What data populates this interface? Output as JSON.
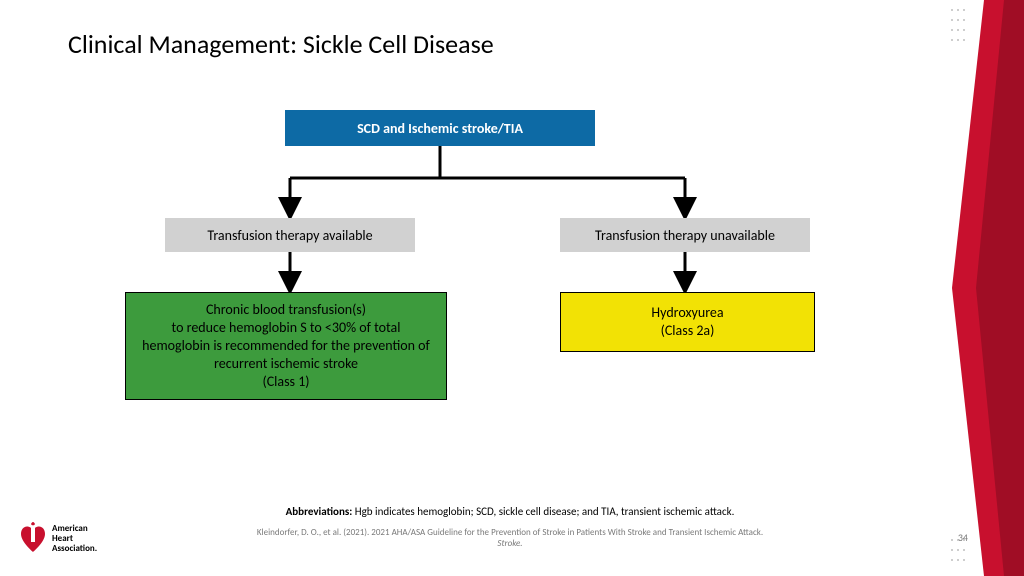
{
  "title": "Clinical Management: Sickle Cell Disease",
  "flowchart": {
    "type": "flowchart",
    "nodes": {
      "root": {
        "label": "SCD and Ischemic stroke/TIA",
        "bg": "#0d6aa5",
        "fg": "#ffffff",
        "font_weight": "700",
        "fontsize": 14
      },
      "left_mid": {
        "label": "Transfusion therapy available",
        "bg": "#d1d1d1",
        "fg": "#000000",
        "fontsize": 14
      },
      "right_mid": {
        "label": "Transfusion therapy unavailable",
        "bg": "#d1d1d1",
        "fg": "#000000",
        "fontsize": 14
      },
      "left_leaf": {
        "label": "Chronic blood transfusion(s)\nto reduce hemoglobin S to <30% of total hemoglobin is recommended for the prevention of recurrent ischemic stroke\n(Class 1)",
        "bg": "#3d9b3d",
        "fg": "#000000",
        "fontsize": 14
      },
      "right_leaf": {
        "label": "Hydroxyurea\n(Class 2a)",
        "bg": "#f2e205",
        "fg": "#000000",
        "fontsize": 14
      }
    },
    "edges": [
      {
        "from": "root",
        "to": "left_mid"
      },
      {
        "from": "root",
        "to": "right_mid"
      },
      {
        "from": "left_mid",
        "to": "left_leaf"
      },
      {
        "from": "right_mid",
        "to": "right_leaf"
      }
    ],
    "connector_color": "#000000",
    "connector_width": 3
  },
  "abbrev_label": "Abbreviations:",
  "abbrev_text": " Hgb indicates hemoglobin; SCD, sickle cell disease; and TIA, transient ischemic attack.",
  "citation_line1": "Kleindorfer, D. O., et al. (2021).  2021 AHA/ASA Guideline for the Prevention of Stroke in Patients With Stroke and Transient Ischemic Attack.",
  "citation_line2": "Stroke.",
  "page_number": "34",
  "logo": {
    "line1": "American",
    "line2": "Heart",
    "line3": "Association."
  },
  "decor": {
    "red": "#c8102e",
    "gray_dot": "#bfbfbf"
  }
}
